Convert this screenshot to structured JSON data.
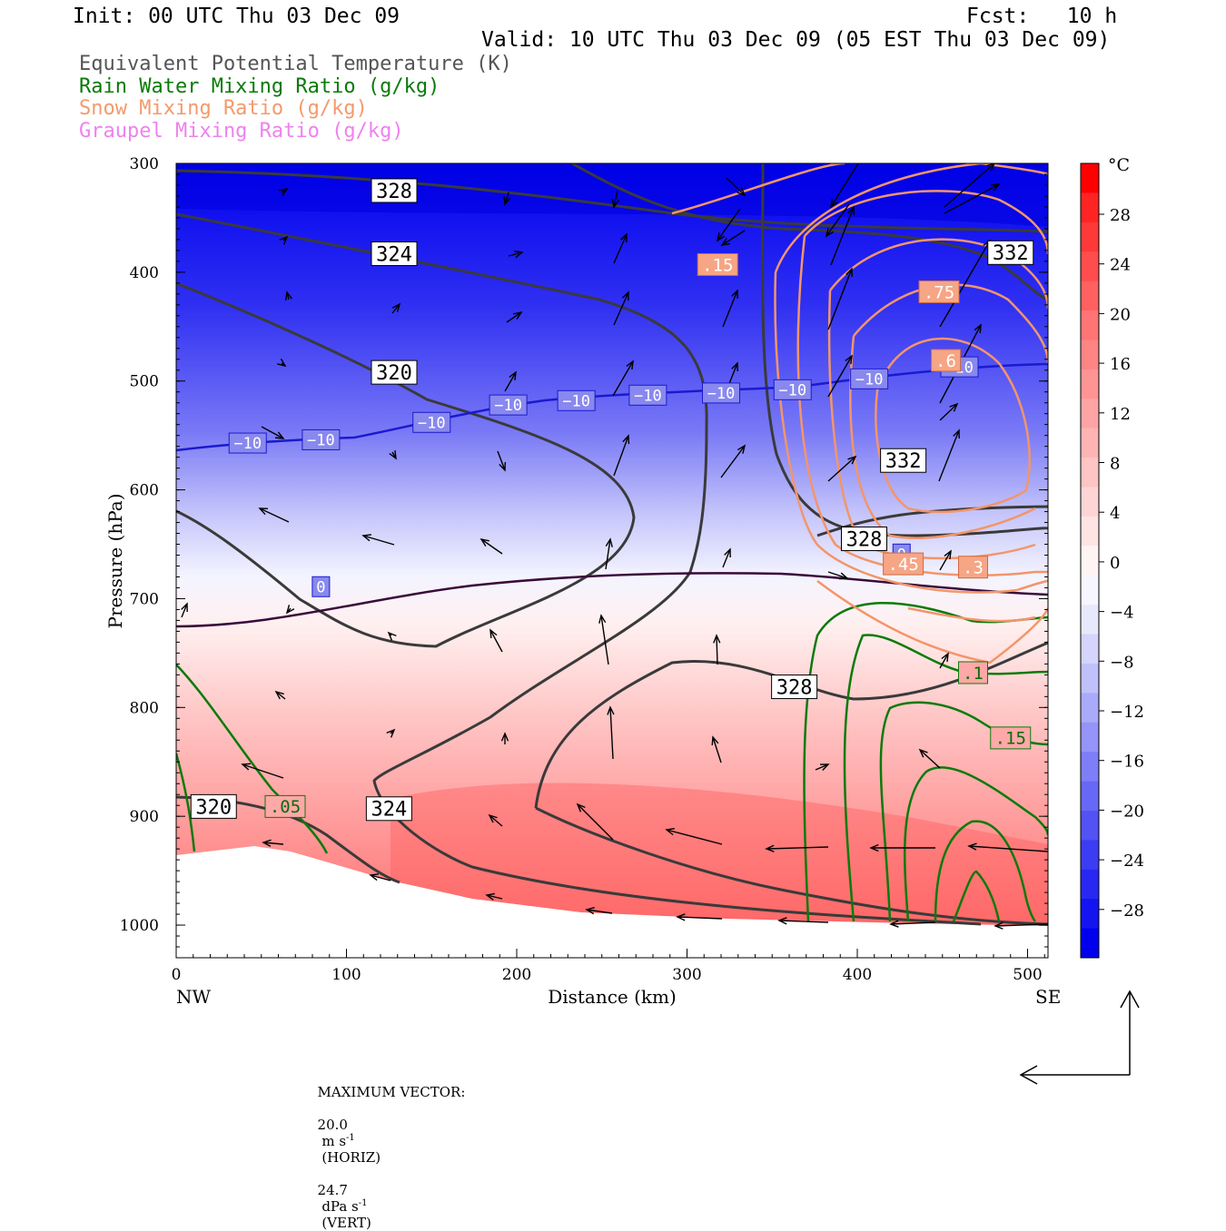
{
  "header": {
    "init": "Init: 00 UTC Thu 03 Dec 09",
    "fcst": "Fcst:   10 h",
    "valid": "Valid: 10 UTC Thu 03 Dec 09 (05 EST Thu 03 Dec 09)"
  },
  "legend": [
    {
      "label": "Equivalent Potential Temperature (K)",
      "color": "#555555"
    },
    {
      "label": "Rain Water Mixing Ratio (g/kg)",
      "color": "#0a7a0a"
    },
    {
      "label": "Snow Mixing Ratio (g/kg)",
      "color": "#f39a6c"
    },
    {
      "label": "Graupel Mixing Ratio (g/kg)",
      "color": "#ee82ee"
    }
  ],
  "chart_data": {
    "type": "heatmap",
    "description_kind": "vertical cross-section",
    "xlabel": "Distance (km)",
    "ylabel": "Pressure (hPa)",
    "xlim": [
      0,
      512
    ],
    "ylim": [
      1030,
      300
    ],
    "x_ticks": [
      "0",
      "100",
      "200",
      "300",
      "400",
      "500"
    ],
    "y_ticks": [
      "300",
      "400",
      "500",
      "600",
      "700",
      "800",
      "900",
      "1000"
    ],
    "x_end_labels": {
      "left": "NW",
      "right": "SE"
    },
    "colorbar": {
      "unit": "°C",
      "ticks": [
        "28",
        "24",
        "20",
        "16",
        "12",
        "8",
        "4",
        "0",
        "−4",
        "−8",
        "−12",
        "−16",
        "−20",
        "−24",
        "−28"
      ],
      "colors": [
        "#0000ee",
        "#1414f0",
        "#2828f2",
        "#3c3cf3",
        "#5252f5",
        "#6868f6",
        "#7e7ef8",
        "#9494f9",
        "#aaaafa",
        "#c0c0fb",
        "#d4d4fc",
        "#e8e8fd",
        "#f6f6ff",
        "#fff4f4",
        "#ffe4e4",
        "#ffd4d4",
        "#ffc4c4",
        "#ffb4b4",
        "#ffa4a4",
        "#ff9494",
        "#ff8484",
        "#ff7474",
        "#ff6060",
        "#ff4c4c",
        "#ff3838",
        "#ff2424",
        "#ff0000"
      ]
    },
    "temperature_labels": [
      {
        "text": "−10",
        "x": 42,
        "p": 557
      },
      {
        "text": "−10",
        "x": 85,
        "p": 554
      },
      {
        "text": "−10",
        "x": 150,
        "p": 538
      },
      {
        "text": "−10",
        "x": 195,
        "p": 522
      },
      {
        "text": "−10",
        "x": 235,
        "p": 518
      },
      {
        "text": "−10",
        "x": 277,
        "p": 513
      },
      {
        "text": "−10",
        "x": 320,
        "p": 511
      },
      {
        "text": "−10",
        "x": 362,
        "p": 508
      },
      {
        "text": "−10",
        "x": 407,
        "p": 498
      },
      {
        "text": "−10",
        "x": 460,
        "p": 487
      },
      {
        "text": "0",
        "x": 85,
        "p": 689
      },
      {
        "text": "0",
        "x": 426,
        "p": 659
      }
    ],
    "theta_e_labels": [
      {
        "text": "328",
        "x": 128,
        "p": 325
      },
      {
        "text": "324",
        "x": 128,
        "p": 383
      },
      {
        "text": "320",
        "x": 128,
        "p": 492
      },
      {
        "text": "332",
        "x": 490,
        "p": 382
      },
      {
        "text": "332",
        "x": 427,
        "p": 573
      },
      {
        "text": "328",
        "x": 404,
        "p": 645
      },
      {
        "text": "328",
        "x": 363,
        "p": 781
      },
      {
        "text": "320",
        "x": 22,
        "p": 891
      },
      {
        "text": "324",
        "x": 125,
        "p": 893
      }
    ],
    "snow_labels": [
      {
        "text": ".15",
        "x": 318,
        "p": 393
      },
      {
        "text": ".75",
        "x": 448,
        "p": 418
      },
      {
        "text": ".6",
        "x": 452,
        "p": 481
      },
      {
        "text": ".45",
        "x": 427,
        "p": 668
      },
      {
        "text": ".3",
        "x": 468,
        "p": 671
      }
    ],
    "rain_labels": [
      {
        "text": ".05",
        "x": 64,
        "p": 891
      },
      {
        "text": ".1",
        "x": 468,
        "p": 768
      },
      {
        "text": ".15",
        "x": 490,
        "p": 828
      }
    ]
  },
  "footer": {
    "max_vector_label": "MAXIMUM VECTOR:",
    "horiz_value": "20.0",
    "horiz_unit": "m s",
    "horiz_exp": "-1",
    "horiz_tag": "(HORIZ)",
    "vert_value": "24.7",
    "vert_unit": "dPa s",
    "vert_exp": "-1",
    "vert_tag": "(VERT)"
  }
}
